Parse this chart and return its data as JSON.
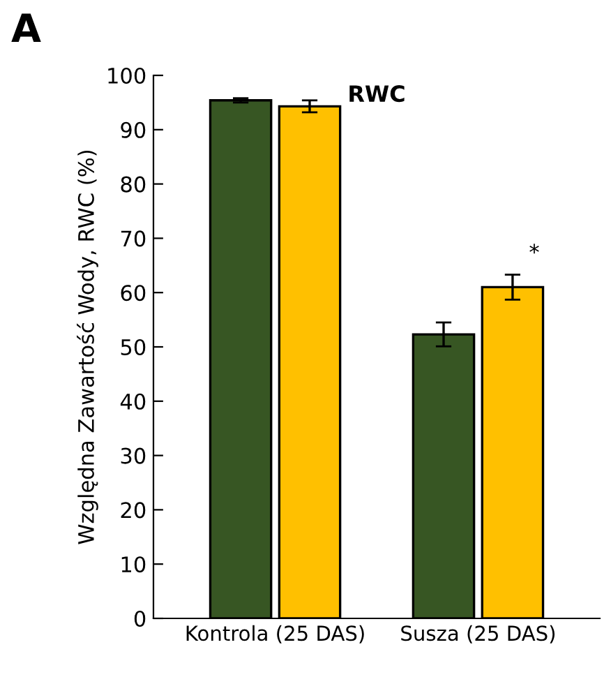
{
  "chart_data": {
    "type": "bar",
    "title": "RWC",
    "ylabel": "Względna Zawartość Wody, RWC (%)",
    "categories": [
      "Kontrola (25 DAS)",
      "Susza (25 DAS)"
    ],
    "series": [
      {
        "color": "#375623",
        "values": [
          95.4,
          52.3
        ],
        "errors": [
          0.4,
          2.2
        ]
      },
      {
        "color": "#ffc000",
        "values": [
          94.3,
          61.0
        ],
        "errors": [
          1.1,
          2.3
        ]
      }
    ],
    "ylim": [
      0,
      100
    ],
    "yticks": [
      0,
      10,
      20,
      30,
      40,
      50,
      60,
      70,
      80,
      90,
      100
    ],
    "grid": false,
    "legend": false,
    "annotations": [
      "A",
      "*"
    ]
  }
}
